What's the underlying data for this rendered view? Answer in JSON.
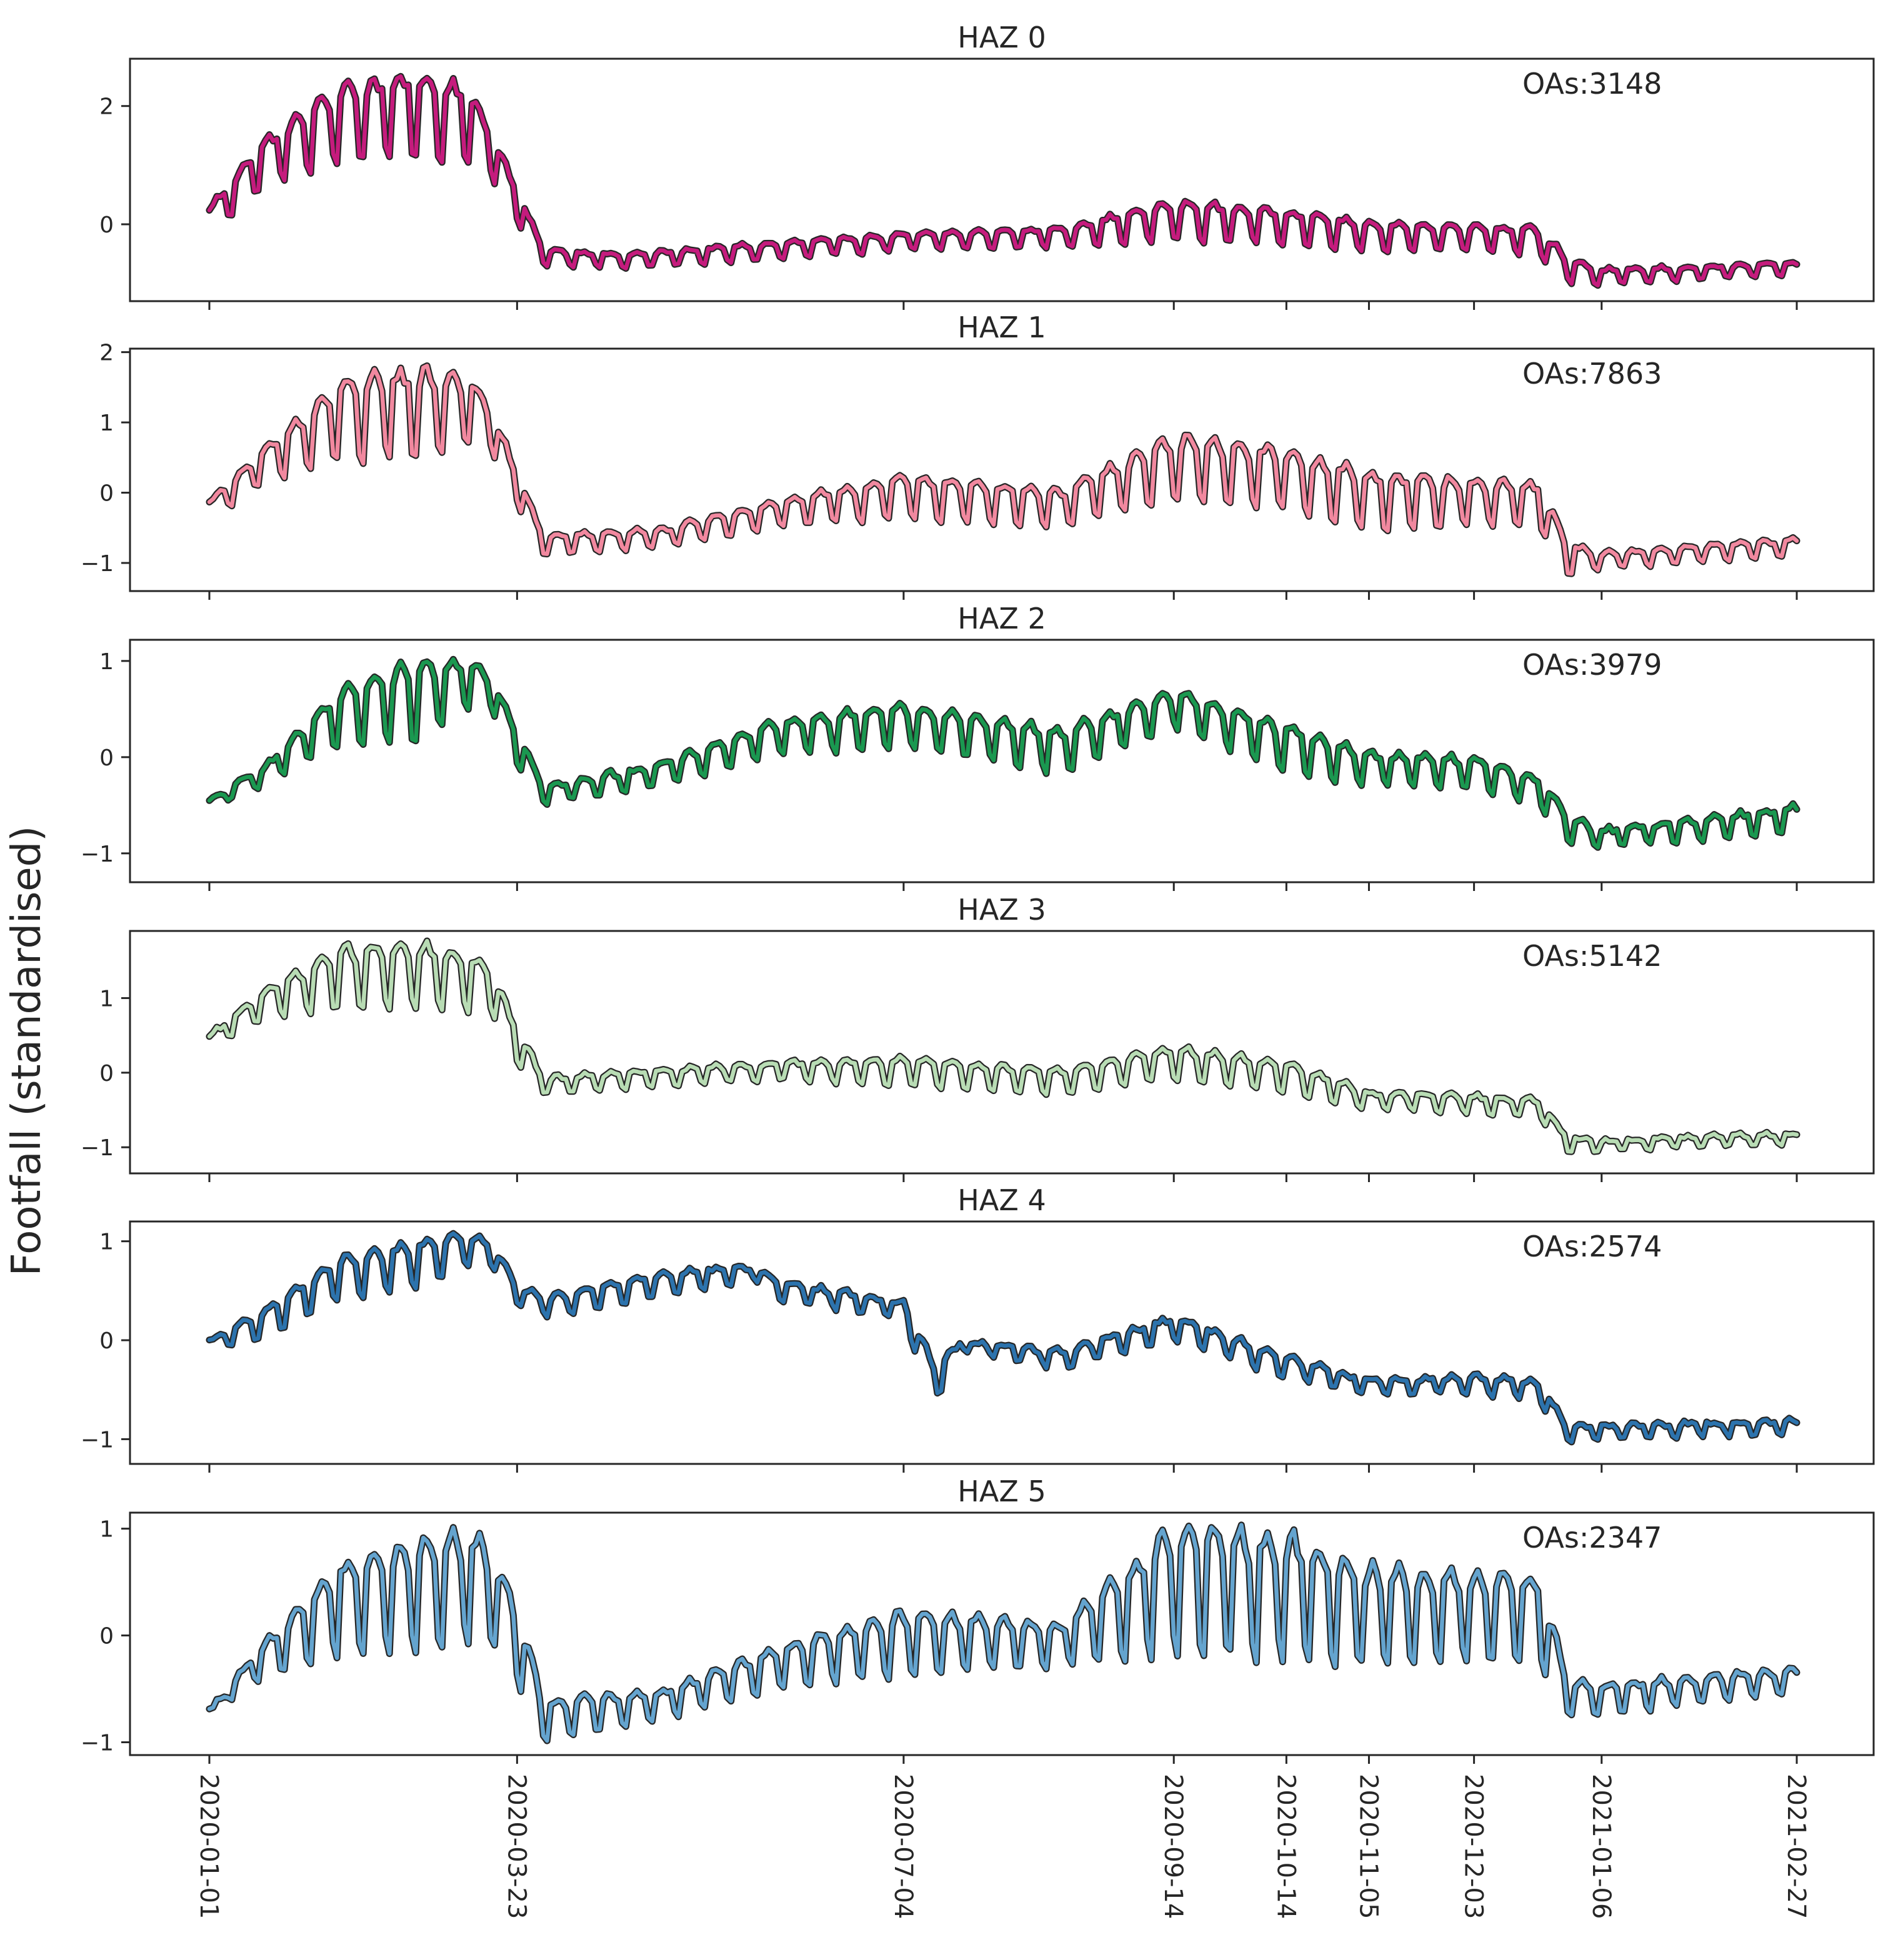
{
  "chart_data": {
    "type": "line",
    "ylabel": "Footfall (standardised)",
    "x_range": [
      "2020-01-01",
      "2021-02-27"
    ],
    "x_ticks": [
      "2020-01-01",
      "2020-03-23",
      "2020-07-04",
      "2020-09-14",
      "2020-10-14",
      "2020-11-05",
      "2020-12-03",
      "2021-01-06",
      "2021-02-27"
    ],
    "grid": false,
    "legend": "none",
    "line_outline_color": "#262626",
    "panels": [
      {
        "title": "HAZ 0",
        "annotation": "OAs:3148",
        "color": "#c51b7d",
        "ylim": [
          -1.3,
          2.8
        ],
        "yticks": [
          0,
          2
        ],
        "keypoints": [
          [
            "2020-01-01",
            -0.2,
            0.3
          ],
          [
            "2020-01-15",
            0.6,
            1.4
          ],
          [
            "2020-02-05",
            1.0,
            2.4
          ],
          [
            "2020-02-25",
            1.0,
            2.6
          ],
          [
            "2020-03-10",
            0.9,
            2.4
          ],
          [
            "2020-03-16",
            0.8,
            1.6
          ],
          [
            "2020-03-23",
            0.0,
            0.6
          ],
          [
            "2020-03-30",
            -0.7,
            -0.4
          ],
          [
            "2020-04-20",
            -0.75,
            -0.5
          ],
          [
            "2020-05-20",
            -0.65,
            -0.35
          ],
          [
            "2020-07-04",
            -0.45,
            -0.15
          ],
          [
            "2020-08-15",
            -0.4,
            -0.05
          ],
          [
            "2020-09-14",
            -0.3,
            0.4
          ],
          [
            "2020-10-14",
            -0.35,
            0.25
          ],
          [
            "2020-11-05",
            -0.5,
            0.05
          ],
          [
            "2020-12-03",
            -0.45,
            0.0
          ],
          [
            "2020-12-20",
            -0.55,
            -0.05
          ],
          [
            "2020-12-28",
            -1.0,
            -0.55
          ],
          [
            "2021-01-06",
            -1.05,
            -0.75
          ],
          [
            "2021-02-27",
            -0.85,
            -0.65
          ]
        ]
      },
      {
        "title": "HAZ 1",
        "annotation": "OAs:7863",
        "color": "#f1889f",
        "ylim": [
          -1.4,
          2.05
        ],
        "yticks": [
          -1,
          0,
          1,
          2
        ],
        "keypoints": [
          [
            "2020-01-01",
            -0.4,
            -0.1
          ],
          [
            "2020-01-15",
            0.1,
            0.6
          ],
          [
            "2020-02-05",
            0.4,
            1.6
          ],
          [
            "2020-02-25",
            0.4,
            1.8
          ],
          [
            "2020-03-10",
            0.6,
            1.7
          ],
          [
            "2020-03-16",
            0.6,
            1.2
          ],
          [
            "2020-03-23",
            -0.2,
            0.3
          ],
          [
            "2020-03-30",
            -0.9,
            -0.6
          ],
          [
            "2020-05-01",
            -0.8,
            -0.5
          ],
          [
            "2020-06-01",
            -0.5,
            -0.1
          ],
          [
            "2020-07-04",
            -0.4,
            0.25
          ],
          [
            "2020-08-15",
            -0.5,
            0.05
          ],
          [
            "2020-09-14",
            -0.2,
            0.85
          ],
          [
            "2020-10-14",
            -0.3,
            0.65
          ],
          [
            "2020-11-05",
            -0.6,
            0.3
          ],
          [
            "2020-12-03",
            -0.5,
            0.2
          ],
          [
            "2020-12-20",
            -0.5,
            0.15
          ],
          [
            "2020-12-28",
            -1.2,
            -0.7
          ],
          [
            "2021-01-06",
            -1.1,
            -0.85
          ],
          [
            "2021-02-27",
            -0.9,
            -0.65
          ]
        ]
      },
      {
        "title": "HAZ 2",
        "annotation": "OAs:3979",
        "color": "#1a9850",
        "ylim": [
          -1.3,
          1.22
        ],
        "yticks": [
          -1,
          0,
          1
        ],
        "keypoints": [
          [
            "2020-01-01",
            -0.55,
            -0.45
          ],
          [
            "2020-01-15",
            -0.3,
            -0.1
          ],
          [
            "2020-02-05",
            0.1,
            0.7
          ],
          [
            "2020-02-25",
            0.1,
            1.0
          ],
          [
            "2020-03-10",
            0.5,
            1.05
          ],
          [
            "2020-03-16",
            0.5,
            0.85
          ],
          [
            "2020-03-23",
            -0.1,
            0.3
          ],
          [
            "2020-03-30",
            -0.5,
            -0.3
          ],
          [
            "2020-05-01",
            -0.3,
            -0.05
          ],
          [
            "2020-06-01",
            0.0,
            0.4
          ],
          [
            "2020-07-04",
            0.1,
            0.55
          ],
          [
            "2020-08-15",
            -0.2,
            0.3
          ],
          [
            "2020-09-14",
            0.3,
            0.7
          ],
          [
            "2020-10-14",
            -0.2,
            0.35
          ],
          [
            "2020-11-05",
            -0.3,
            0.05
          ],
          [
            "2020-12-03",
            -0.35,
            0.0
          ],
          [
            "2020-12-20",
            -0.5,
            -0.2
          ],
          [
            "2020-12-28",
            -0.9,
            -0.6
          ],
          [
            "2021-01-06",
            -0.95,
            -0.75
          ],
          [
            "2021-02-27",
            -0.8,
            -0.5
          ]
        ]
      },
      {
        "title": "HAZ 3",
        "annotation": "OAs:5142",
        "color": "#b8dcb4",
        "ylim": [
          -1.35,
          1.9
        ],
        "yticks": [
          -1,
          0,
          1
        ],
        "keypoints": [
          [
            "2020-01-01",
            0.3,
            0.5
          ],
          [
            "2020-01-15",
            0.7,
            1.1
          ],
          [
            "2020-02-05",
            0.8,
            1.7
          ],
          [
            "2020-02-25",
            0.8,
            1.75
          ],
          [
            "2020-03-10",
            0.8,
            1.6
          ],
          [
            "2020-03-16",
            0.8,
            1.4
          ],
          [
            "2020-03-23",
            0.1,
            0.6
          ],
          [
            "2020-03-30",
            -0.3,
            -0.05
          ],
          [
            "2020-05-01",
            -0.2,
            0.05
          ],
          [
            "2020-06-01",
            -0.1,
            0.15
          ],
          [
            "2020-07-04",
            -0.2,
            0.2
          ],
          [
            "2020-08-15",
            -0.3,
            0.05
          ],
          [
            "2020-09-14",
            -0.1,
            0.35
          ],
          [
            "2020-10-14",
            -0.3,
            0.15
          ],
          [
            "2020-11-05",
            -0.5,
            -0.25
          ],
          [
            "2020-12-03",
            -0.55,
            -0.3
          ],
          [
            "2020-12-20",
            -0.6,
            -0.35
          ],
          [
            "2020-12-28",
            -1.1,
            -0.85
          ],
          [
            "2021-01-06",
            -1.05,
            -0.9
          ],
          [
            "2021-02-27",
            -0.95,
            -0.8
          ]
        ]
      },
      {
        "title": "HAZ 4",
        "annotation": "OAs:2574",
        "color": "#2c73ad",
        "ylim": [
          -1.25,
          1.2
        ],
        "yticks": [
          -1,
          0,
          1
        ],
        "keypoints": [
          [
            "2020-01-01",
            -0.1,
            0.0
          ],
          [
            "2020-01-15",
            0.0,
            0.3
          ],
          [
            "2020-02-05",
            0.4,
            0.85
          ],
          [
            "2020-02-25",
            0.5,
            1.0
          ],
          [
            "2020-03-10",
            0.75,
            1.08
          ],
          [
            "2020-03-16",
            0.75,
            1.0
          ],
          [
            "2020-03-23",
            0.35,
            0.55
          ],
          [
            "2020-04-01",
            0.2,
            0.45
          ],
          [
            "2020-05-01",
            0.45,
            0.7
          ],
          [
            "2020-05-25",
            0.6,
            0.75
          ],
          [
            "2020-06-01",
            0.4,
            0.6
          ],
          [
            "2020-07-04",
            0.2,
            0.4
          ],
          [
            "2020-07-12",
            -0.7,
            -0.2
          ],
          [
            "2020-07-20",
            -0.1,
            0.0
          ],
          [
            "2020-08-15",
            -0.3,
            -0.1
          ],
          [
            "2020-09-14",
            0.0,
            0.25
          ],
          [
            "2020-10-14",
            -0.4,
            -0.15
          ],
          [
            "2020-11-05",
            -0.55,
            -0.4
          ],
          [
            "2020-12-03",
            -0.55,
            -0.35
          ],
          [
            "2020-12-20",
            -0.6,
            -0.4
          ],
          [
            "2020-12-28",
            -1.05,
            -0.85
          ],
          [
            "2021-01-06",
            -1.0,
            -0.85
          ],
          [
            "2021-02-27",
            -0.95,
            -0.8
          ]
        ]
      },
      {
        "title": "HAZ 5",
        "annotation": "OAs:2347",
        "color": "#64a4cf",
        "ylim": [
          -1.12,
          1.15
        ],
        "yticks": [
          -1,
          0,
          1
        ],
        "keypoints": [
          [
            "2020-01-01",
            -0.75,
            -0.7
          ],
          [
            "2020-01-15",
            -0.4,
            -0.1
          ],
          [
            "2020-02-05",
            -0.2,
            0.7
          ],
          [
            "2020-02-25",
            -0.2,
            0.9
          ],
          [
            "2020-03-10",
            -0.1,
            1.0
          ],
          [
            "2020-03-16",
            -0.1,
            0.8
          ],
          [
            "2020-03-23",
            -0.5,
            0.3
          ],
          [
            "2020-03-30",
            -1.0,
            -0.6
          ],
          [
            "2020-05-01",
            -0.8,
            -0.5
          ],
          [
            "2020-06-01",
            -0.5,
            -0.1
          ],
          [
            "2020-07-04",
            -0.4,
            0.25
          ],
          [
            "2020-08-15",
            -0.3,
            0.1
          ],
          [
            "2020-09-14",
            -0.2,
            1.05
          ],
          [
            "2020-10-14",
            -0.3,
            0.95
          ],
          [
            "2020-11-05",
            -0.3,
            0.65
          ],
          [
            "2020-12-03",
            -0.3,
            0.6
          ],
          [
            "2020-12-20",
            -0.3,
            0.55
          ],
          [
            "2020-12-28",
            -0.75,
            -0.4
          ],
          [
            "2021-01-06",
            -0.75,
            -0.45
          ],
          [
            "2021-02-27",
            -0.55,
            -0.3
          ]
        ]
      }
    ]
  }
}
